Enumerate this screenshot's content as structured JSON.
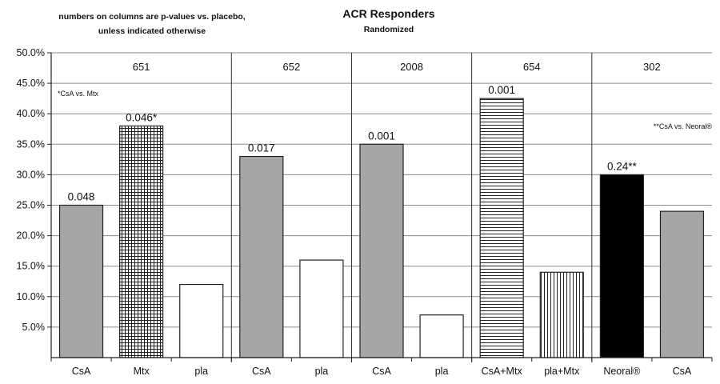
{
  "chart_data": {
    "type": "bar",
    "title": "ACR Responders",
    "subtitle": "Randomized",
    "note_lines": [
      "numbers on columns are p-values vs. placebo,",
      "unless indicated otherwise"
    ],
    "ylim": [
      0,
      50
    ],
    "yticks": [
      5,
      10,
      15,
      20,
      25,
      30,
      35,
      40,
      45,
      50
    ],
    "ytick_labels": [
      "5.0%",
      "10.0%",
      "15.0%",
      "20.0%",
      "25.0%",
      "30.0%",
      "35.0%",
      "40.0%",
      "45.0%",
      "50.0%"
    ],
    "grid": true,
    "categories": [
      "CsA",
      "Mtx",
      "pla",
      "CsA",
      "pla",
      "CsA",
      "pla",
      "CsA+Mtx",
      "pla+Mtx",
      "Neoral®",
      "CsA"
    ],
    "values": [
      25,
      38,
      12,
      33,
      16,
      35,
      7,
      42.5,
      14,
      30,
      24
    ],
    "fills": [
      "gray",
      "crosshatch",
      "white",
      "gray",
      "white",
      "gray",
      "white",
      "hstripes",
      "vstripes",
      "black",
      "gray"
    ],
    "data_labels": [
      "0.048",
      "0.046*",
      "",
      "0.017",
      "",
      "0.001",
      "",
      "0.001",
      "",
      "0.24**",
      ""
    ],
    "groups": [
      {
        "label": "651",
        "start": 0,
        "end": 2
      },
      {
        "label": "652",
        "start": 3,
        "end": 4
      },
      {
        "label": "2008",
        "start": 5,
        "end": 6
      },
      {
        "label": "654",
        "start": 7,
        "end": 8
      },
      {
        "label": "302",
        "start": 9,
        "end": 10
      }
    ],
    "annotations": {
      "left": "*CsA vs. Mtx",
      "right": "**CsA vs. Neoral®"
    },
    "colors": {
      "gray": "#a6a6a6",
      "black": "#000000",
      "white": "#ffffff",
      "line": "#222222"
    }
  }
}
